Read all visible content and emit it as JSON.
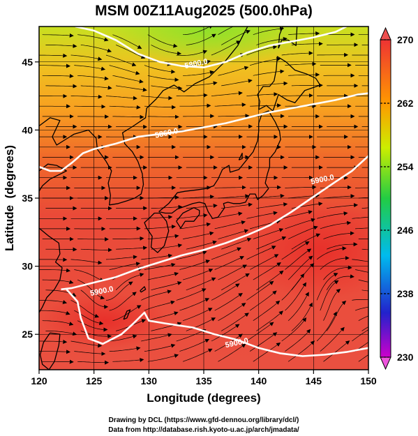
{
  "figure": {
    "title": "MSM 00Z11Aug2025 (500.0hPa)",
    "credit_line1": "Drawing by DCL (https://www.gfd-dennou.org/library/dcl/)",
    "credit_line2": "Data from http://database.rish.kyoto-u.ac.jp/arch/jmadata/"
  },
  "axes": {
    "xlabel": "Longitude (degrees)",
    "ylabel": "Latitude  (degrees)",
    "xlim": [
      120,
      150
    ],
    "ylim": [
      22.4,
      47.6
    ],
    "x_ticks": [
      "120",
      "125",
      "130",
      "135",
      "140",
      "145",
      "150"
    ],
    "y_ticks": [
      "25",
      "30",
      "35",
      "40",
      "45"
    ],
    "grid": true
  },
  "colorbar": {
    "min": 230,
    "max": 270,
    "ticks": [
      "270",
      "262",
      "254",
      "246",
      "238",
      "230"
    ],
    "colors": [
      "#cc00cc",
      "#2222cc",
      "#00bbee",
      "#22cc44",
      "#ccee00",
      "#ff9900",
      "#ee3333"
    ]
  },
  "contours": {
    "color": "#ffffff",
    "lines": [
      {
        "label": "5800.0",
        "points": [
          [
            123.3,
            47.6
          ],
          [
            125,
            47.3
          ],
          [
            127,
            46.6
          ],
          [
            129,
            45.6
          ],
          [
            131,
            45.0
          ],
          [
            133,
            44.7
          ],
          [
            135,
            44.6
          ],
          [
            137,
            45.0
          ],
          [
            139,
            45.7
          ],
          [
            141,
            46.2
          ],
          [
            143,
            46.5
          ],
          [
            145,
            46.8
          ],
          [
            147,
            47.2
          ],
          [
            148,
            47.6
          ]
        ],
        "label_at": [
          134.3,
          44.9
        ]
      },
      {
        "label": "5860.0",
        "points": [
          [
            120,
            37.3
          ],
          [
            121,
            37.0
          ],
          [
            122,
            37.0
          ],
          [
            123,
            37.6
          ],
          [
            124,
            38.3
          ],
          [
            125,
            38.6
          ],
          [
            127,
            39.0
          ],
          [
            129,
            39.5
          ],
          [
            131,
            39.7
          ],
          [
            133,
            39.9
          ],
          [
            135,
            40.2
          ],
          [
            137,
            40.5
          ],
          [
            139,
            40.9
          ],
          [
            141,
            41.3
          ],
          [
            143,
            41.6
          ],
          [
            145,
            41.9
          ],
          [
            147,
            42.2
          ],
          [
            149,
            42.6
          ],
          [
            150,
            42.7
          ]
        ],
        "label_at": [
          131.6,
          39.8
        ]
      },
      {
        "label": "5900.0",
        "points": [
          [
            150,
            38.1
          ],
          [
            148.5,
            37.0
          ],
          [
            147,
            36.2
          ],
          [
            145,
            35.1
          ],
          [
            143,
            34.0
          ],
          [
            141,
            33.0
          ],
          [
            139,
            32.3
          ],
          [
            137,
            31.7
          ],
          [
            135,
            31.2
          ],
          [
            133,
            30.8
          ],
          [
            131,
            30.3
          ],
          [
            129,
            29.8
          ],
          [
            127,
            29.2
          ],
          [
            125,
            28.8
          ],
          [
            123,
            28.4
          ],
          [
            122,
            28.3
          ]
        ],
        "label_at": [
          145.8,
          36.4
        ]
      },
      {
        "label": "5900.0",
        "points": [
          [
            122.5,
            28.3
          ],
          [
            123.5,
            27.4
          ],
          [
            123.8,
            26.2
          ],
          [
            124.5,
            24.7
          ],
          [
            125.8,
            24.3
          ],
          [
            127.5,
            25.0
          ],
          [
            128.6,
            25.8
          ],
          [
            129.6,
            26.6
          ],
          [
            130.0,
            26.0
          ],
          [
            131.5,
            25.8
          ],
          [
            134,
            25.5
          ],
          [
            136,
            25.0
          ],
          [
            138,
            24.6
          ],
          [
            140,
            24.0
          ],
          [
            142,
            23.6
          ],
          [
            144,
            23.4
          ],
          [
            146,
            23.5
          ],
          [
            148,
            23.7
          ],
          [
            150,
            24.0
          ]
        ],
        "label_at": [
          125.7,
          28.2
        ]
      },
      {
        "label": "5900.0",
        "points": [
          [
            150,
            24.0
          ],
          [
            150,
            24.0
          ]
        ],
        "label_at": [
          138.0,
          24.4
        ]
      }
    ]
  },
  "coastlines": [
    {
      "region": "Japan-Honshu",
      "points": [
        [
          130.9,
          34.0
        ],
        [
          131.8,
          34.6
        ],
        [
          132.6,
          35.4
        ],
        [
          133.3,
          35.5
        ],
        [
          134.3,
          35.6
        ],
        [
          135.2,
          35.7
        ],
        [
          135.9,
          35.9
        ],
        [
          136.3,
          36.4
        ],
        [
          136.7,
          37.1
        ],
        [
          137.3,
          37.4
        ],
        [
          137.4,
          36.9
        ],
        [
          138.2,
          37.1
        ],
        [
          138.9,
          37.8
        ],
        [
          139.5,
          38.4
        ],
        [
          139.9,
          39.2
        ],
        [
          140.0,
          39.9
        ],
        [
          140.0,
          40.5
        ],
        [
          140.3,
          41.2
        ],
        [
          140.9,
          41.4
        ],
        [
          141.5,
          40.6
        ],
        [
          141.9,
          39.9
        ],
        [
          142.0,
          39.3
        ],
        [
          141.5,
          38.4
        ],
        [
          141.0,
          37.9
        ],
        [
          141.0,
          37.3
        ],
        [
          140.8,
          36.8
        ],
        [
          140.6,
          36.1
        ],
        [
          140.9,
          35.7
        ],
        [
          140.4,
          35.2
        ],
        [
          139.9,
          34.9
        ],
        [
          139.7,
          35.3
        ],
        [
          139.2,
          35.3
        ],
        [
          138.8,
          34.7
        ],
        [
          138.3,
          34.6
        ],
        [
          137.7,
          34.6
        ],
        [
          137.2,
          34.7
        ],
        [
          136.8,
          34.6
        ],
        [
          136.9,
          34.3
        ],
        [
          136.3,
          33.6
        ],
        [
          135.8,
          33.5
        ],
        [
          135.4,
          34.0
        ],
        [
          135.1,
          34.6
        ],
        [
          134.6,
          34.7
        ],
        [
          134.0,
          34.6
        ],
        [
          133.3,
          34.4
        ],
        [
          132.6,
          34.2
        ],
        [
          132.1,
          33.9
        ],
        [
          131.5,
          33.9
        ],
        [
          130.9,
          34.0
        ]
      ]
    },
    {
      "region": "Japan-Kyushu",
      "points": [
        [
          130.0,
          33.5
        ],
        [
          130.5,
          33.9
        ],
        [
          131.0,
          33.9
        ],
        [
          131.6,
          33.3
        ],
        [
          131.8,
          32.6
        ],
        [
          131.4,
          31.5
        ],
        [
          130.8,
          31.0
        ],
        [
          130.2,
          31.4
        ],
        [
          130.3,
          32.2
        ],
        [
          129.8,
          32.8
        ],
        [
          129.6,
          33.2
        ],
        [
          130.0,
          33.5
        ]
      ]
    },
    {
      "region": "Japan-Shikoku",
      "points": [
        [
          132.5,
          33.3
        ],
        [
          133.1,
          33.9
        ],
        [
          134.1,
          34.3
        ],
        [
          134.6,
          34.1
        ],
        [
          134.6,
          33.8
        ],
        [
          134.1,
          33.3
        ],
        [
          133.3,
          33.3
        ],
        [
          132.9,
          32.8
        ],
        [
          132.5,
          33.3
        ]
      ]
    },
    {
      "region": "Japan-Hokkaido",
      "points": [
        [
          140.0,
          41.5
        ],
        [
          140.7,
          41.8
        ],
        [
          141.3,
          41.4
        ],
        [
          141.8,
          42.6
        ],
        [
          142.6,
          42.2
        ],
        [
          143.3,
          42.0
        ],
        [
          144.2,
          42.9
        ],
        [
          145.6,
          43.3
        ],
        [
          145.2,
          43.8
        ],
        [
          144.4,
          44.1
        ],
        [
          143.3,
          44.4
        ],
        [
          142.5,
          45.0
        ],
        [
          141.7,
          45.4
        ],
        [
          141.6,
          44.4
        ],
        [
          141.4,
          43.6
        ],
        [
          141.0,
          43.2
        ],
        [
          140.4,
          43.2
        ],
        [
          139.9,
          42.6
        ],
        [
          140.1,
          42.1
        ],
        [
          140.0,
          41.5
        ]
      ]
    },
    {
      "region": "Sakhalin",
      "points": [
        [
          141.8,
          46.0
        ],
        [
          142.1,
          46.6
        ],
        [
          142.7,
          46.6
        ],
        [
          143.4,
          46.2
        ],
        [
          143.5,
          47.6
        ],
        [
          142.2,
          47.6
        ],
        [
          141.9,
          47.0
        ],
        [
          141.8,
          46.0
        ]
      ]
    },
    {
      "region": "Korea",
      "points": [
        [
          124.5,
          40.0
        ],
        [
          125.2,
          39.4
        ],
        [
          125.3,
          38.6
        ],
        [
          126.1,
          37.7
        ],
        [
          126.6,
          37.0
        ],
        [
          126.3,
          36.1
        ],
        [
          126.5,
          35.2
        ],
        [
          126.4,
          34.5
        ],
        [
          127.2,
          34.6
        ],
        [
          128.0,
          34.8
        ],
        [
          128.7,
          35.0
        ],
        [
          129.3,
          35.3
        ],
        [
          129.5,
          36.0
        ],
        [
          129.4,
          36.8
        ],
        [
          129.0,
          37.7
        ],
        [
          128.5,
          38.4
        ],
        [
          127.8,
          39.0
        ],
        [
          127.6,
          39.8
        ],
        [
          128.6,
          40.3
        ],
        [
          129.7,
          40.9
        ],
        [
          129.8,
          41.6
        ],
        [
          130.7,
          42.3
        ]
      ]
    },
    {
      "region": "China-Russia-coast",
      "points": [
        [
          130.7,
          42.3
        ],
        [
          131.3,
          42.9
        ],
        [
          132.3,
          43.3
        ],
        [
          133.2,
          42.8
        ],
        [
          134.2,
          43.4
        ],
        [
          135.5,
          43.9
        ],
        [
          136.9,
          45.0
        ],
        [
          138.1,
          46.2
        ],
        [
          138.6,
          47.0
        ],
        [
          139.0,
          47.6
        ]
      ]
    },
    {
      "region": "China-east-coast",
      "points": [
        [
          124.5,
          40.0
        ],
        [
          123.2,
          39.7
        ],
        [
          122.2,
          39.2
        ],
        [
          121.6,
          38.9
        ],
        [
          121.2,
          39.5
        ],
        [
          121.9,
          40.7
        ],
        [
          121.0,
          40.9
        ],
        [
          120.0,
          40.3
        ]
      ]
    },
    {
      "region": "Shandong",
      "points": [
        [
          120.0,
          37.0
        ],
        [
          120.8,
          37.5
        ],
        [
          121.6,
          37.4
        ],
        [
          122.5,
          37.0
        ],
        [
          122.0,
          36.8
        ],
        [
          121.0,
          36.4
        ],
        [
          120.3,
          35.9
        ],
        [
          120.0,
          35.5
        ]
      ]
    },
    {
      "region": "China-south-coast",
      "points": [
        [
          120.0,
          32.8
        ],
        [
          120.9,
          32.2
        ],
        [
          121.8,
          31.7
        ],
        [
          121.9,
          30.9
        ],
        [
          121.5,
          30.3
        ],
        [
          122.1,
          29.9
        ],
        [
          121.9,
          29.0
        ],
        [
          121.4,
          28.3
        ],
        [
          120.7,
          27.7
        ],
        [
          120.3,
          27.0
        ],
        [
          120.0,
          26.6
        ]
      ]
    },
    {
      "region": "Taiwan",
      "points": [
        [
          121.0,
          25.1
        ],
        [
          121.9,
          25.0
        ],
        [
          121.8,
          24.2
        ],
        [
          121.4,
          23.0
        ],
        [
          120.9,
          22.4
        ],
        [
          120.3,
          22.8
        ],
        [
          120.1,
          23.5
        ],
        [
          120.4,
          24.4
        ],
        [
          121.0,
          25.1
        ]
      ]
    },
    {
      "region": "Ryukyu-islands",
      "points": [
        [
          127.7,
          26.1
        ],
        [
          128.0,
          26.7
        ],
        [
          128.3,
          26.8
        ],
        [
          128.0,
          26.2
        ],
        [
          127.7,
          26.1
        ]
      ]
    },
    {
      "region": "Amami",
      "points": [
        [
          129.2,
          28.2
        ],
        [
          129.6,
          28.5
        ],
        [
          129.7,
          28.3
        ],
        [
          129.3,
          28.1
        ],
        [
          129.2,
          28.2
        ]
      ]
    },
    {
      "region": "Sado",
      "points": [
        [
          138.2,
          37.8
        ],
        [
          138.5,
          38.3
        ],
        [
          138.5,
          37.9
        ],
        [
          138.2,
          37.8
        ]
      ]
    }
  ]
}
